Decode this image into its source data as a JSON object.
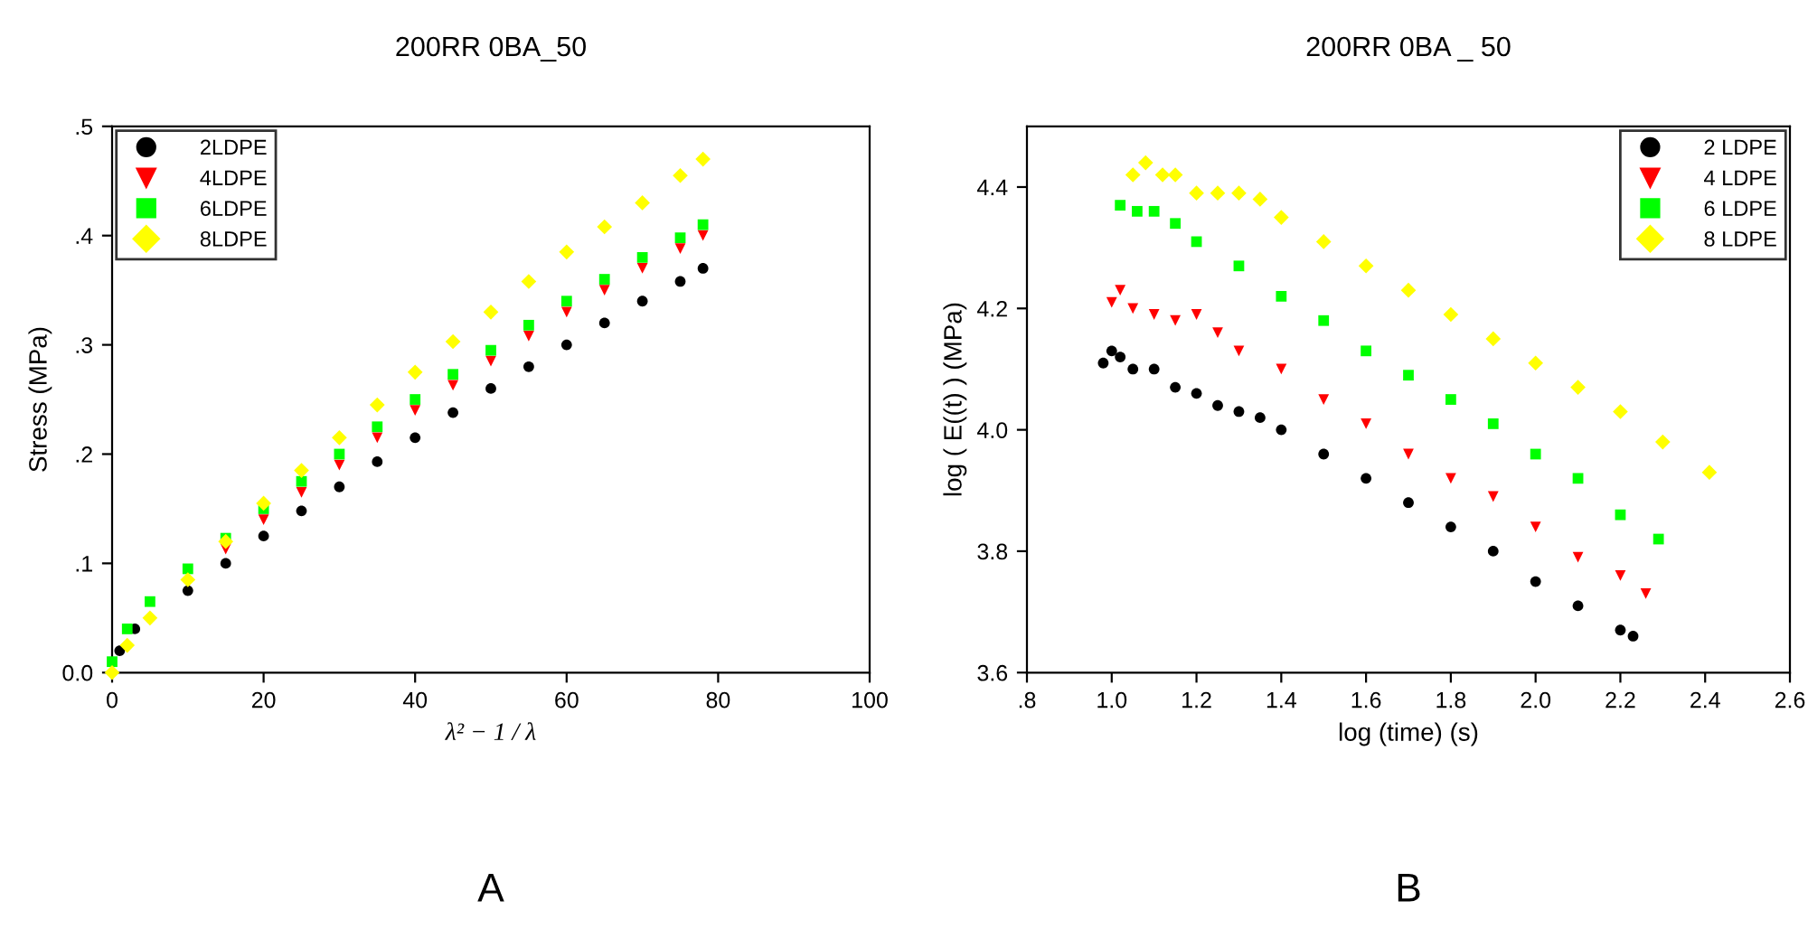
{
  "chart_data": [
    {
      "type": "scatter",
      "title": "200RR 0BA_50",
      "xlabel": "λ² − 1 / λ",
      "ylabel": "Stress (MPa)",
      "annotations": [
        "A"
      ],
      "xlim": [
        0,
        100
      ],
      "xticks": [
        0,
        20,
        40,
        60,
        80,
        100
      ],
      "ylim": [
        0,
        0.5
      ],
      "yticks": [
        {
          "value": 0,
          "label": "0.0"
        },
        {
          "value": 0.1,
          "label": ".1"
        },
        {
          "value": 0.2,
          "label": ".2"
        },
        {
          "value": 0.3,
          "label": ".3"
        },
        {
          "value": 0.4,
          "label": ".4"
        },
        {
          "value": 0.5,
          "label": ".5"
        }
      ],
      "legend": "top left",
      "series": [
        {
          "name": "2LDPE",
          "color": "#000000",
          "marker": "circle",
          "x": [
            1,
            3,
            10,
            15,
            20,
            25,
            30,
            35,
            40,
            45,
            50,
            55,
            60,
            65,
            70,
            75,
            78
          ],
          "values": [
            0.02,
            0.04,
            0.075,
            0.1,
            0.125,
            0.148,
            0.17,
            0.193,
            0.215,
            0.238,
            0.26,
            0.28,
            0.3,
            0.32,
            0.34,
            0.358,
            0.37
          ]
        },
        {
          "name": "4LDPE",
          "color": "#ff0000",
          "marker": "triangle",
          "x": [
            15,
            20,
            25,
            30,
            35,
            40,
            45,
            50,
            55,
            60,
            65,
            70,
            75,
            78
          ],
          "values": [
            0.113,
            0.14,
            0.165,
            0.19,
            0.215,
            0.24,
            0.263,
            0.285,
            0.308,
            0.33,
            0.35,
            0.37,
            0.388,
            0.4
          ]
        },
        {
          "name": "6LDPE",
          "color": "#00ff00",
          "marker": "square",
          "x": [
            0,
            2,
            5,
            10,
            15,
            20,
            25,
            30,
            35,
            40,
            45,
            50,
            55,
            60,
            65,
            70,
            75,
            78
          ],
          "values": [
            0.01,
            0.04,
            0.065,
            0.095,
            0.123,
            0.15,
            0.175,
            0.2,
            0.225,
            0.25,
            0.273,
            0.295,
            0.318,
            0.34,
            0.36,
            0.38,
            0.398,
            0.41
          ]
        },
        {
          "name": "8LDPE",
          "color": "#ffff00",
          "marker": "diamond",
          "x": [
            0,
            2,
            5,
            10,
            15,
            20,
            25,
            30,
            35,
            40,
            45,
            50,
            55,
            60,
            65,
            70,
            75,
            78
          ],
          "values": [
            0,
            0.025,
            0.05,
            0.085,
            0.12,
            0.155,
            0.185,
            0.215,
            0.245,
            0.275,
            0.303,
            0.33,
            0.358,
            0.385,
            0.408,
            0.43,
            0.455,
            0.47
          ]
        }
      ]
    },
    {
      "type": "scatter",
      "title": "200RR 0BA _ 50",
      "xlabel": "log (time) (s)",
      "ylabel": "log ( E((t) ) (MPa)",
      "annotations": [
        "B"
      ],
      "xlim": [
        0.8,
        2.6
      ],
      "xticks": [
        {
          "value": 0.8,
          "label": ".8"
        },
        {
          "value": 1.0,
          "label": "1.0"
        },
        {
          "value": 1.2,
          "label": "1.2"
        },
        {
          "value": 1.4,
          "label": "1.4"
        },
        {
          "value": 1.6,
          "label": "1.6"
        },
        {
          "value": 1.8,
          "label": "1.8"
        },
        {
          "value": 2.0,
          "label": "2.0"
        },
        {
          "value": 2.2,
          "label": "2.2"
        },
        {
          "value": 2.4,
          "label": "2.4"
        },
        {
          "value": 2.6,
          "label": "2.6"
        }
      ],
      "ylim": [
        3.6,
        4.5
      ],
      "yticks": [
        {
          "value": 3.6,
          "label": "3.6"
        },
        {
          "value": 3.8,
          "label": "3.8"
        },
        {
          "value": 4.0,
          "label": "4.0"
        },
        {
          "value": 4.2,
          "label": "4.2"
        },
        {
          "value": 4.4,
          "label": "4.4"
        }
      ],
      "legend": "top right",
      "series": [
        {
          "name": "2 LDPE",
          "color": "#000000",
          "marker": "circle",
          "x": [
            0.98,
            1.0,
            1.02,
            1.05,
            1.1,
            1.15,
            1.2,
            1.25,
            1.3,
            1.35,
            1.4,
            1.5,
            1.6,
            1.7,
            1.8,
            1.9,
            2.0,
            2.1,
            2.2,
            2.23
          ],
          "values": [
            4.11,
            4.13,
            4.12,
            4.1,
            4.1,
            4.07,
            4.06,
            4.04,
            4.03,
            4.02,
            4.0,
            3.96,
            3.92,
            3.88,
            3.84,
            3.8,
            3.75,
            3.71,
            3.67,
            3.66
          ]
        },
        {
          "name": "4 LDPE",
          "color": "#ff0000",
          "marker": "triangle",
          "x": [
            1.0,
            1.02,
            1.05,
            1.1,
            1.15,
            1.2,
            1.25,
            1.3,
            1.4,
            1.5,
            1.6,
            1.7,
            1.8,
            1.9,
            2.0,
            2.1,
            2.2,
            2.26
          ],
          "values": [
            4.21,
            4.23,
            4.2,
            4.19,
            4.18,
            4.19,
            4.16,
            4.13,
            4.1,
            4.05,
            4.01,
            3.96,
            3.92,
            3.89,
            3.84,
            3.79,
            3.76,
            3.73
          ]
        },
        {
          "name": "6 LDPE",
          "color": "#00ff00",
          "marker": "square",
          "x": [
            1.02,
            1.06,
            1.1,
            1.15,
            1.2,
            1.3,
            1.4,
            1.5,
            1.6,
            1.7,
            1.8,
            1.9,
            2.0,
            2.1,
            2.2,
            2.29
          ],
          "values": [
            4.37,
            4.36,
            4.36,
            4.34,
            4.31,
            4.27,
            4.22,
            4.18,
            4.13,
            4.09,
            4.05,
            4.01,
            3.96,
            3.92,
            3.86,
            3.82
          ]
        },
        {
          "name": "8 LDPE",
          "color": "#ffff00",
          "marker": "diamond",
          "x": [
            1.05,
            1.08,
            1.12,
            1.15,
            1.2,
            1.25,
            1.3,
            1.35,
            1.4,
            1.5,
            1.6,
            1.7,
            1.8,
            1.9,
            2.0,
            2.1,
            2.2,
            2.3,
            2.41
          ],
          "values": [
            4.42,
            4.44,
            4.42,
            4.42,
            4.39,
            4.39,
            4.39,
            4.38,
            4.35,
            4.31,
            4.27,
            4.23,
            4.19,
            4.15,
            4.11,
            4.07,
            4.03,
            3.98,
            3.93
          ]
        }
      ]
    }
  ]
}
